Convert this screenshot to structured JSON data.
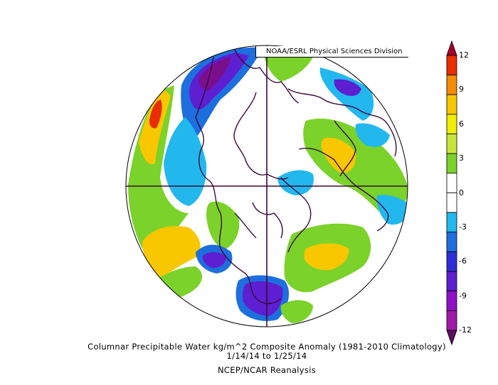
{
  "credit": "NOAA/ESRL Physical Sciences Division",
  "caption": {
    "line1": "Columnar Precipitable Water kg/m^2 Composite Anomaly (1981-2010 Climatology)",
    "line2": "1/14/14  to 1/25/14",
    "line3": "NCEP/NCAR Reanalysis"
  },
  "colorbar": {
    "labels": [
      "12",
      "9",
      "6",
      "3",
      "0",
      "-3",
      "-6",
      "-9",
      "-12"
    ],
    "colors": [
      "#a4002a",
      "#e82d00",
      "#f58b00",
      "#f8c700",
      "#f2ee00",
      "#c8e63a",
      "#7bd22a",
      "#ffffff",
      "#ffffff",
      "#22b8ee",
      "#1e6fde",
      "#2d2ed8",
      "#5d1fd1",
      "#9010c6",
      "#a01aa8",
      "#5c0d5c"
    ]
  },
  "map": {
    "projection": "north polar stereographic",
    "palette": {
      "positive_light": "#7bd22a",
      "positive_mid": "#f8c700",
      "positive_high": "#f58b00",
      "positive_max": "#e82d00",
      "negative_light": "#22b8ee",
      "negative_mid": "#1e6fde",
      "negative_high": "#5d1fd1",
      "negative_max": "#7a0f8c",
      "coastline": "#3a0a3a"
    }
  }
}
